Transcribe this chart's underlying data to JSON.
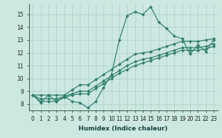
{
  "xlabel": "Humidex (Indice chaleur)",
  "bg_color": "#cce8e0",
  "grid_color": "#aacccc",
  "line_color": "#2e7d6e",
  "xlim": [
    -0.5,
    23.5
  ],
  "ylim": [
    7.5,
    15.8
  ],
  "xticks": [
    0,
    1,
    2,
    3,
    4,
    5,
    6,
    7,
    8,
    9,
    10,
    11,
    12,
    13,
    14,
    15,
    16,
    17,
    18,
    19,
    20,
    21,
    22,
    23
  ],
  "yticks": [
    8,
    9,
    10,
    11,
    12,
    13,
    14,
    15
  ],
  "lines": [
    [
      8.7,
      8.1,
      8.7,
      8.2,
      8.6,
      8.2,
      8.1,
      7.7,
      8.2,
      9.3,
      10.3,
      13.0,
      14.9,
      15.2,
      15.0,
      15.6,
      14.4,
      13.9,
      13.3,
      13.1,
      11.9,
      12.6,
      12.1,
      13.0
    ],
    [
      8.7,
      8.7,
      8.7,
      8.7,
      8.7,
      9.1,
      9.5,
      9.5,
      9.9,
      10.3,
      10.7,
      11.1,
      11.5,
      11.9,
      12.0,
      12.1,
      12.3,
      12.5,
      12.7,
      12.9,
      12.9,
      12.9,
      13.0,
      13.1
    ],
    [
      8.7,
      8.4,
      8.4,
      8.4,
      8.6,
      8.8,
      9.0,
      9.0,
      9.4,
      9.8,
      10.2,
      10.6,
      11.0,
      11.3,
      11.5,
      11.6,
      11.8,
      12.0,
      12.2,
      12.4,
      12.4,
      12.4,
      12.5,
      12.7
    ],
    [
      8.7,
      8.2,
      8.2,
      8.2,
      8.5,
      8.7,
      8.8,
      8.8,
      9.2,
      9.6,
      10.0,
      10.4,
      10.7,
      11.0,
      11.2,
      11.4,
      11.6,
      11.8,
      12.0,
      12.2,
      12.2,
      12.2,
      12.3,
      12.5
    ]
  ]
}
